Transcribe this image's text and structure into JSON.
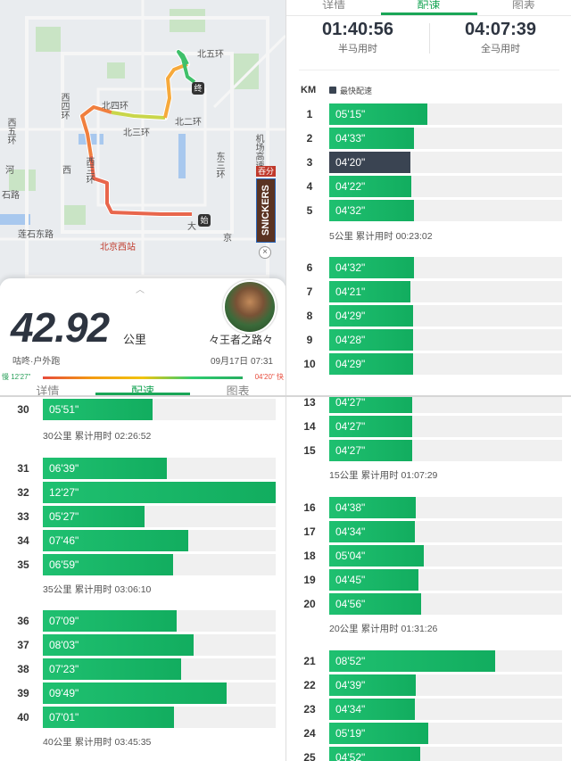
{
  "map": {
    "labels": [
      {
        "text": "北五环",
        "cls": ""
      },
      {
        "text": "北四环",
        "cls": ""
      },
      {
        "text": "北三环",
        "cls": ""
      },
      {
        "text": "西五环",
        "cls": ""
      },
      {
        "text": "西四环",
        "cls": ""
      },
      {
        "text": "北二环",
        "cls": ""
      },
      {
        "text": "西三环",
        "cls": ""
      },
      {
        "text": "东三环",
        "cls": ""
      },
      {
        "text": "河",
        "cls": ""
      },
      {
        "text": "西",
        "cls": ""
      },
      {
        "text": "石路",
        "cls": ""
      },
      {
        "text": "莲石东路",
        "cls": ""
      },
      {
        "text": "北京西站",
        "cls": "red"
      },
      {
        "text": "大",
        "cls": ""
      },
      {
        "text": "机场高速",
        "cls": ""
      },
      {
        "text": "京",
        "cls": ""
      }
    ],
    "start_marker": "始",
    "end_marker": "终",
    "badge_top": "吞分",
    "brand": "SNICKERS"
  },
  "summary": {
    "distance": "42.92",
    "unit": "公里",
    "source": "咕咚·户外跑",
    "username": "々王者之路々",
    "datetime": "09月17日 07:31",
    "pace_min_label": "慢 12'27\"",
    "pace_max_label": "04'20\" 快"
  },
  "tabs": [
    "详情",
    "配速",
    "图表"
  ],
  "stats": {
    "half_time": "01:40:56",
    "half_label": "半马用时",
    "full_time": "04:07:39",
    "full_label": "全马用时"
  },
  "legend": {
    "km_header": "KM",
    "fastest": "最快配速"
  },
  "left_rows": [
    {
      "km": "30",
      "pace": "05'51\"",
      "sec": 351
    },
    {
      "km": "31",
      "pace": "06'39\"",
      "sec": 399
    },
    {
      "km": "32",
      "pace": "12'27\"",
      "sec": 747
    },
    {
      "km": "33",
      "pace": "05'27\"",
      "sec": 327
    },
    {
      "km": "34",
      "pace": "07'46\"",
      "sec": 466
    },
    {
      "km": "35",
      "pace": "06'59\"",
      "sec": 419
    },
    {
      "km": "36",
      "pace": "07'09\"",
      "sec": 429
    },
    {
      "km": "37",
      "pace": "08'03\"",
      "sec": 483
    },
    {
      "km": "38",
      "pace": "07'23\"",
      "sec": 443
    },
    {
      "km": "39",
      "pace": "09'49\"",
      "sec": 589
    },
    {
      "km": "40",
      "pace": "07'01\"",
      "sec": 421
    }
  ],
  "left_subtotals": [
    "30公里 累计用时 02:26:52",
    "35公里 累计用时 03:06:10",
    "40公里 累计用时 03:45:35"
  ],
  "right_rows": [
    {
      "km": "1",
      "pace": "05'15\"",
      "sec": 315
    },
    {
      "km": "2",
      "pace": "04'33\"",
      "sec": 273
    },
    {
      "km": "3",
      "pace": "04'20\"",
      "sec": 260,
      "fast": true
    },
    {
      "km": "4",
      "pace": "04'22\"",
      "sec": 262
    },
    {
      "km": "5",
      "pace": "04'32\"",
      "sec": 272
    },
    {
      "km": "6",
      "pace": "04'32\"",
      "sec": 272
    },
    {
      "km": "7",
      "pace": "04'21\"",
      "sec": 261
    },
    {
      "km": "8",
      "pace": "04'29\"",
      "sec": 269
    },
    {
      "km": "9",
      "pace": "04'28\"",
      "sec": 268
    },
    {
      "km": "10",
      "pace": "04'29\"",
      "sec": 269
    }
  ],
  "right_subtotals": [
    "5公里 累计用时 00:23:02"
  ],
  "right_lower_rows": [
    {
      "km": "13",
      "pace": "04'27\"",
      "sec": 267
    },
    {
      "km": "14",
      "pace": "04'27\"",
      "sec": 267
    },
    {
      "km": "15",
      "pace": "04'27\"",
      "sec": 267
    },
    {
      "km": "16",
      "pace": "04'38\"",
      "sec": 278
    },
    {
      "km": "17",
      "pace": "04'34\"",
      "sec": 274
    },
    {
      "km": "18",
      "pace": "05'04\"",
      "sec": 304
    },
    {
      "km": "19",
      "pace": "04'45\"",
      "sec": 285
    },
    {
      "km": "20",
      "pace": "04'56\"",
      "sec": 296
    },
    {
      "km": "21",
      "pace": "08'52\"",
      "sec": 532
    },
    {
      "km": "22",
      "pace": "04'39\"",
      "sec": 279
    },
    {
      "km": "23",
      "pace": "04'34\"",
      "sec": 274
    },
    {
      "km": "24",
      "pace": "05'19\"",
      "sec": 319
    },
    {
      "km": "25",
      "pace": "04'52\"",
      "sec": 292
    }
  ],
  "right_lower_subtotals": [
    "15公里 累计用时 01:07:29",
    "20公里 累计用时 01:31:26"
  ]
}
